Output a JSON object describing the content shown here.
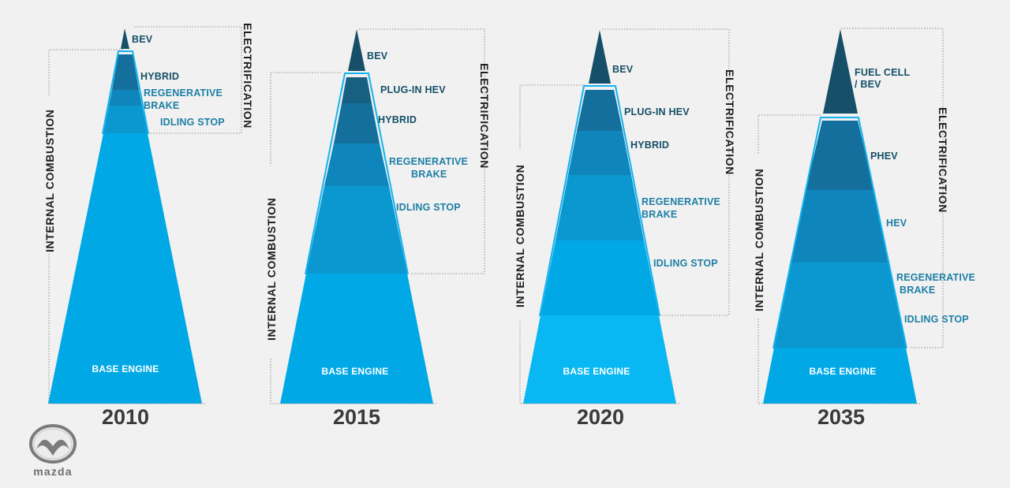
{
  "legend": {
    "internal_combustion": "INTERNAL COMBUSTION",
    "electrification": "ELECTRIFICATION"
  },
  "brand": {
    "logo_text": "mazda"
  },
  "colors": {
    "base": "#00a9e6",
    "base_light": "#09b8f2",
    "idling": "#0b98d1",
    "regen": "#0f86bb",
    "hybrid": "#146f9d",
    "plug": "#176081",
    "bev": "#154f68",
    "outline": "#14b3ee"
  },
  "chart_data": [
    {
      "year": "2010",
      "segments": [
        {
          "label": "BASE ENGINE",
          "share": 73.0
        },
        {
          "label": "IDLING STOP",
          "share": 7.2
        },
        {
          "label": "REGENERATIVE BRAKE",
          "share": 4.1
        },
        {
          "label": "HYBRID",
          "share": 10.3
        },
        {
          "label": "BEV",
          "share": 5.4
        }
      ]
    },
    {
      "year": "2015",
      "segments": [
        {
          "label": "BASE ENGINE",
          "share": 34.7
        },
        {
          "label": "IDLING STOP",
          "share": 23.9
        },
        {
          "label": "REGENERATIVE BRAKE",
          "share": 11.9
        },
        {
          "label": "HYBRID",
          "share": 10.2
        },
        {
          "label": "PLUG-IN HEV",
          "share": 7.3
        },
        {
          "label": "BEV",
          "share": 12.0
        }
      ]
    },
    {
      "year": "2020",
      "segments": [
        {
          "label": "BASE ENGINE",
          "share": 23.7
        },
        {
          "label": "IDLING STOP",
          "share": 20.2
        },
        {
          "label": "REGENERATIVE BRAKE",
          "share": 17.8
        },
        {
          "label": "HYBRID",
          "share": 12.5
        },
        {
          "label": "PLUG-IN HEV",
          "share": 11.8
        },
        {
          "label": "BEV",
          "share": 14.0
        }
      ]
    },
    {
      "year": "2035",
      "segments": [
        {
          "label": "BASE ENGINE",
          "share": 14.7
        },
        {
          "label": "IDLING STOP",
          "share": 22.6
        },
        {
          "label": "REGENERATIVE BRAKE",
          "share": 0
        },
        {
          "label": "HEV",
          "share": 19.2
        },
        {
          "label": "PHEV",
          "share": 19.6
        },
        {
          "label": "FUEL CELL / BEV",
          "share": 23.9
        }
      ]
    }
  ],
  "labels": {
    "p2010": {
      "bev": "BEV",
      "hybrid": "HYBRID",
      "regen1": "REGENERATIVE",
      "regen2": "BRAKE",
      "idling": "IDLING STOP",
      "base": "BASE ENGINE",
      "year": "2010"
    },
    "p2015": {
      "bev": "BEV",
      "plug": "PLUG-IN HEV",
      "hybrid": "HYBRID",
      "regen1": "REGENERATIVE",
      "regen2": "BRAKE",
      "idling": "IDLING STOP",
      "base": "BASE ENGINE",
      "year": "2015"
    },
    "p2020": {
      "bev": "BEV",
      "plug": "PLUG-IN HEV",
      "hybrid": "HYBRID",
      "regen1": "REGENERATIVE",
      "regen2": "BRAKE",
      "idling": "IDLING STOP",
      "base": "BASE ENGINE",
      "year": "2020"
    },
    "p2035": {
      "fc1": "FUEL CELL",
      "fc2": "/ BEV",
      "phev": "PHEV",
      "hev": "HEV",
      "regen1": "REGENERATIVE",
      "regen2": "BRAKE",
      "idling": "IDLING STOP",
      "base": "BASE ENGINE",
      "year": "2035"
    }
  }
}
